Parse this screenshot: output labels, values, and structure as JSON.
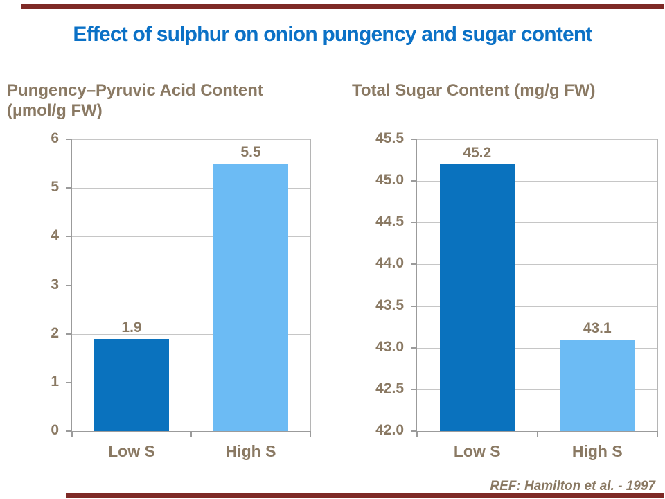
{
  "title": "Effect of sulphur on onion pungency and sugar content",
  "reference": "REF: Hamilton et al. - 1997",
  "colors": {
    "title_blue": "#0B71C6",
    "text_brown": "#8A7963",
    "accent_rule_maroon": "#7E2A26",
    "gridline_gray": "#C6C6C6",
    "axis_gray": "#9B9B9B",
    "plot_border_gray": "#B5B5B5",
    "bar_dark_blue": "#0A72BE",
    "bar_light_blue": "#6CBBF4"
  },
  "chart_data": [
    {
      "type": "bar",
      "title_lines": [
        "Pungency–Pyruvic Acid Content",
        "(µmol/g FW)"
      ],
      "categories": [
        "Low S",
        "High S"
      ],
      "values": [
        1.9,
        5.5
      ],
      "value_labels": [
        "1.9",
        "5.5"
      ],
      "bar_colors": [
        "#0A72BE",
        "#6CBBF4"
      ],
      "xlabel": "",
      "ylabel": "µmol/g FW",
      "ylim": [
        0,
        6
      ],
      "yticks": [
        0,
        1,
        2,
        3,
        4,
        5,
        6
      ],
      "ytick_labels": [
        "0",
        "1",
        "2",
        "3",
        "4",
        "5",
        "6"
      ],
      "grid": true,
      "legend_position": "none"
    },
    {
      "type": "bar",
      "title_lines": [
        "Total Sugar Content (mg/g FW)"
      ],
      "categories": [
        "Low S",
        "High S"
      ],
      "values": [
        45.2,
        43.1
      ],
      "value_labels": [
        "45.2",
        "43.1"
      ],
      "bar_colors": [
        "#0A72BE",
        "#6CBBF4"
      ],
      "xlabel": "",
      "ylabel": "mg/g FW",
      "ylim": [
        42.0,
        45.5
      ],
      "yticks": [
        42.0,
        42.5,
        43.0,
        43.5,
        44.0,
        44.5,
        45.0,
        45.5
      ],
      "ytick_labels": [
        "42.0",
        "42.5",
        "43.0",
        "43.5",
        "44.0",
        "44.5",
        "45.0",
        "45.5"
      ],
      "grid": true,
      "legend_position": "none"
    }
  ]
}
